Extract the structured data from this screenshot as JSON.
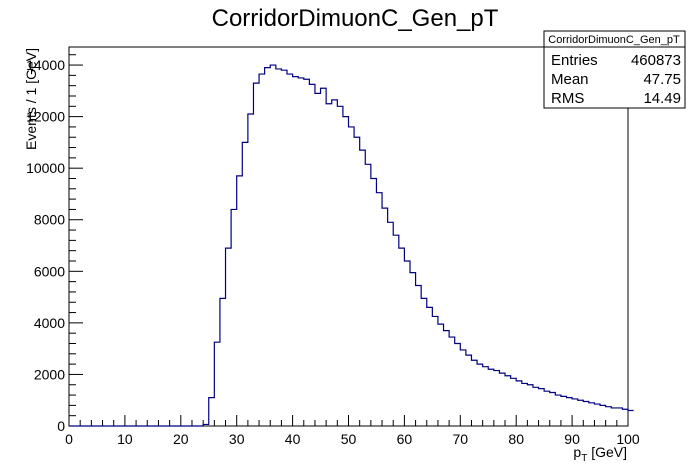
{
  "chart_data": {
    "type": "bar",
    "style": "step-histogram",
    "title": "CorridorDimuonC_Gen_pT",
    "xlabel_main": "p",
    "xlabel_sub": "T",
    "xlabel_unit": " [GeV]",
    "ylabel": "Events / 1 [GeV]",
    "xlim": [
      0,
      100
    ],
    "ylim": [
      0,
      14700
    ],
    "x_ticks": [
      "0",
      "10",
      "20",
      "30",
      "40",
      "50",
      "60",
      "70",
      "80",
      "90",
      "100"
    ],
    "y_ticks": [
      "0",
      "2000",
      "4000",
      "6000",
      "8000",
      "10000",
      "12000",
      "14000"
    ],
    "line_color": "#000080",
    "bin_width": 1,
    "x_start": 0,
    "values": [
      0,
      0,
      0,
      0,
      0,
      0,
      0,
      0,
      0,
      0,
      0,
      0,
      0,
      0,
      0,
      0,
      0,
      0,
      0,
      0,
      0,
      0,
      0,
      0,
      60,
      1100,
      3250,
      4950,
      6900,
      8400,
      9700,
      11000,
      12100,
      13300,
      13650,
      13900,
      14000,
      13850,
      13800,
      13650,
      13550,
      13500,
      13450,
      13250,
      12900,
      13100,
      12500,
      12650,
      12400,
      12000,
      11600,
      11200,
      10700,
      10150,
      9600,
      9050,
      8450,
      7900,
      7400,
      6900,
      6400,
      5950,
      5450,
      4950,
      4600,
      4250,
      3950,
      3700,
      3450,
      3200,
      2950,
      2750,
      2550,
      2400,
      2300,
      2200,
      2150,
      2050,
      1950,
      1850,
      1750,
      1650,
      1600,
      1500,
      1450,
      1350,
      1300,
      1200,
      1150,
      1100,
      1050,
      1000,
      950,
      900,
      850,
      800,
      750,
      700,
      700,
      650,
      600
    ],
    "stats": {
      "title": "CorridorDimuonC_Gen_pT",
      "rows": [
        {
          "label": "Entries",
          "value": "460873"
        },
        {
          "label": "Mean",
          "value": "47.75"
        },
        {
          "label": "RMS",
          "value": "14.49"
        }
      ]
    }
  }
}
